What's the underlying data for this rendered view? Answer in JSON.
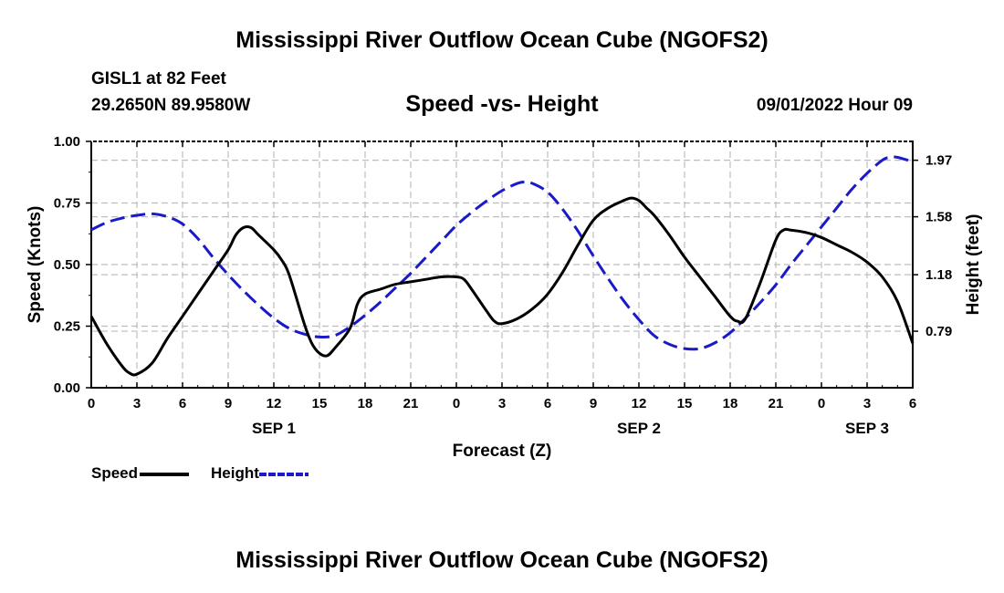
{
  "page": {
    "title": "Mississippi River Outflow Ocean Cube (NGOFS2)",
    "station": "GISL1 at 82 Feet",
    "coords": "29.2650N  89.9580W",
    "datetime": "09/01/2022 Hour 09",
    "footer_title": "Mississippi River Outflow Ocean Cube (NGOFS2)"
  },
  "chart_data": {
    "type": "line",
    "title": "Speed -vs- Height",
    "xlabel": "Forecast (Z)",
    "ylabel": "Speed (Knots)",
    "ylabel_right": "Height (feet)",
    "x_range_hours": [
      0,
      54
    ],
    "ylim": [
      0.0,
      1.0
    ],
    "ylim_right": [
      0.4,
      2.1
    ],
    "x_ticks": [
      {
        "hour": 0,
        "label": "0"
      },
      {
        "hour": 3,
        "label": "3"
      },
      {
        "hour": 6,
        "label": "6"
      },
      {
        "hour": 9,
        "label": "9"
      },
      {
        "hour": 12,
        "label": "12"
      },
      {
        "hour": 15,
        "label": "15"
      },
      {
        "hour": 18,
        "label": "18"
      },
      {
        "hour": 21,
        "label": "21"
      },
      {
        "hour": 24,
        "label": "0"
      },
      {
        "hour": 27,
        "label": "3"
      },
      {
        "hour": 30,
        "label": "6"
      },
      {
        "hour": 33,
        "label": "9"
      },
      {
        "hour": 36,
        "label": "12"
      },
      {
        "hour": 39,
        "label": "15"
      },
      {
        "hour": 42,
        "label": "18"
      },
      {
        "hour": 45,
        "label": "21"
      },
      {
        "hour": 48,
        "label": "0"
      },
      {
        "hour": 51,
        "label": "3"
      },
      {
        "hour": 54,
        "label": "6"
      }
    ],
    "date_labels": [
      {
        "hour": 12,
        "label": "SEP 1"
      },
      {
        "hour": 36,
        "label": "SEP 2"
      },
      {
        "hour": 51,
        "label": "SEP 3"
      }
    ],
    "y_ticks": [
      {
        "value": 0.0,
        "label": "0.00"
      },
      {
        "value": 0.25,
        "label": "0.25"
      },
      {
        "value": 0.5,
        "label": "0.50"
      },
      {
        "value": 0.75,
        "label": "0.75"
      },
      {
        "value": 1.0,
        "label": "1.00"
      }
    ],
    "y_ticks_right": [
      {
        "value": 0.79,
        "label": "0.79"
      },
      {
        "value": 1.18,
        "label": "1.18"
      },
      {
        "value": 1.58,
        "label": "1.58"
      },
      {
        "value": 1.97,
        "label": "1.97"
      }
    ],
    "grid": true,
    "series": [
      {
        "name": "Speed",
        "axis": "left",
        "color": "#000000",
        "style": "solid",
        "x": [
          0,
          1,
          2,
          2.5,
          3,
          4,
          5,
          6,
          7,
          8,
          9,
          9.5,
          10,
          10.5,
          11,
          12,
          12.5,
          13,
          14,
          14.5,
          15,
          15.5,
          16,
          17,
          17.5,
          18,
          19,
          20,
          21,
          22,
          23,
          24,
          24.5,
          25,
          26,
          26.5,
          27,
          28,
          29,
          30,
          31,
          32,
          33,
          34,
          35,
          35.5,
          36,
          36.5,
          37,
          38,
          39,
          40,
          41,
          42,
          42.5,
          43,
          44,
          45,
          45.5,
          46,
          47,
          48,
          49,
          50,
          51,
          52,
          53,
          54
        ],
        "y": [
          0.29,
          0.18,
          0.09,
          0.06,
          0.055,
          0.1,
          0.2,
          0.29,
          0.38,
          0.47,
          0.56,
          0.62,
          0.65,
          0.65,
          0.62,
          0.56,
          0.52,
          0.46,
          0.26,
          0.18,
          0.14,
          0.13,
          0.16,
          0.24,
          0.34,
          0.38,
          0.4,
          0.42,
          0.43,
          0.44,
          0.45,
          0.45,
          0.44,
          0.4,
          0.31,
          0.27,
          0.26,
          0.28,
          0.32,
          0.38,
          0.47,
          0.58,
          0.68,
          0.73,
          0.76,
          0.77,
          0.76,
          0.73,
          0.7,
          0.62,
          0.53,
          0.45,
          0.37,
          0.29,
          0.27,
          0.28,
          0.43,
          0.6,
          0.64,
          0.64,
          0.63,
          0.61,
          0.58,
          0.55,
          0.51,
          0.45,
          0.35,
          0.18
        ]
      },
      {
        "name": "Height",
        "axis": "right",
        "color": "#1a1ac8",
        "style": "dashed",
        "x": [
          0,
          1,
          2,
          3,
          4,
          5,
          6,
          7,
          8,
          9,
          10,
          11,
          12,
          13,
          14,
          15,
          16,
          17,
          18,
          19,
          20,
          21,
          22,
          23,
          24,
          25,
          26,
          27,
          28,
          28.5,
          29,
          30,
          31,
          32,
          33,
          34,
          35,
          36,
          37,
          38,
          39,
          40,
          41,
          42,
          43,
          44,
          45,
          46,
          47,
          48,
          49,
          50,
          51,
          52,
          52.5,
          53,
          54
        ],
        "y": [
          1.49,
          1.54,
          1.57,
          1.59,
          1.6,
          1.58,
          1.53,
          1.43,
          1.3,
          1.18,
          1.07,
          0.97,
          0.88,
          0.81,
          0.77,
          0.75,
          0.76,
          0.82,
          0.9,
          0.99,
          1.09,
          1.19,
          1.3,
          1.41,
          1.52,
          1.61,
          1.69,
          1.76,
          1.81,
          1.82,
          1.81,
          1.75,
          1.63,
          1.48,
          1.31,
          1.15,
          1.0,
          0.87,
          0.76,
          0.7,
          0.67,
          0.67,
          0.71,
          0.78,
          0.88,
          0.99,
          1.11,
          1.25,
          1.38,
          1.51,
          1.64,
          1.77,
          1.88,
          1.97,
          1.99,
          1.99,
          1.96
        ]
      }
    ],
    "legend": [
      {
        "name": "Speed",
        "color": "#000000",
        "style": "solid"
      },
      {
        "name": "Height",
        "color": "#1a1ac8",
        "style": "dashed"
      }
    ]
  }
}
